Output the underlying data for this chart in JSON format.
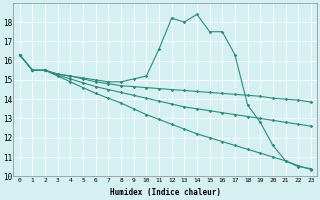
{
  "xlabel": "Humidex (Indice chaleur)",
  "background_color": "#d4f0f0",
  "grid_color": "#ffffff",
  "line_color": "#2e8b7a",
  "xlim": [
    -0.5,
    23.5
  ],
  "ylim": [
    10,
    19
  ],
  "yticks": [
    10,
    11,
    12,
    13,
    14,
    15,
    16,
    17,
    18
  ],
  "xticks": [
    0,
    1,
    2,
    3,
    4,
    5,
    6,
    7,
    8,
    9,
    10,
    11,
    12,
    13,
    14,
    15,
    16,
    17,
    18,
    19,
    20,
    21,
    22,
    23
  ],
  "lines": [
    {
      "x": [
        0,
        1,
        2,
        3,
        4,
        5,
        6,
        7,
        8,
        9,
        10,
        11,
        12,
        13,
        14,
        15,
        16,
        17,
        18,
        19,
        20,
        21,
        22,
        23
      ],
      "y": [
        16.3,
        15.5,
        15.5,
        15.3,
        15.2,
        15.1,
        15.0,
        14.9,
        14.9,
        15.05,
        15.2,
        16.6,
        18.2,
        18.0,
        18.4,
        17.5,
        17.5,
        16.3,
        13.7,
        12.8,
        11.6,
        10.8,
        10.5,
        10.4
      ]
    },
    {
      "x": [
        0,
        1,
        2,
        3,
        4,
        5,
        6,
        7,
        8,
        9,
        10,
        11,
        12,
        13,
        14,
        15,
        16,
        17,
        18,
        19,
        20,
        21,
        22,
        23
      ],
      "y": [
        16.3,
        15.5,
        15.5,
        15.3,
        15.2,
        15.05,
        14.9,
        14.8,
        14.7,
        14.65,
        14.6,
        14.55,
        14.5,
        14.45,
        14.4,
        14.35,
        14.3,
        14.25,
        14.2,
        14.15,
        14.05,
        14.0,
        13.95,
        13.85
      ]
    },
    {
      "x": [
        0,
        1,
        2,
        3,
        4,
        5,
        6,
        7,
        8,
        9,
        10,
        11,
        12,
        13,
        14,
        15,
        16,
        17,
        18,
        19,
        20,
        21,
        22,
        23
      ],
      "y": [
        16.3,
        15.5,
        15.5,
        15.25,
        15.05,
        14.85,
        14.65,
        14.5,
        14.35,
        14.2,
        14.05,
        13.9,
        13.75,
        13.6,
        13.5,
        13.4,
        13.3,
        13.2,
        13.1,
        13.0,
        12.9,
        12.8,
        12.7,
        12.6
      ]
    },
    {
      "x": [
        0,
        1,
        2,
        3,
        4,
        5,
        6,
        7,
        8,
        9,
        10,
        11,
        12,
        13,
        14,
        15,
        16,
        17,
        18,
        19,
        20,
        21,
        22,
        23
      ],
      "y": [
        16.3,
        15.5,
        15.5,
        15.2,
        14.9,
        14.6,
        14.3,
        14.05,
        13.8,
        13.5,
        13.2,
        12.95,
        12.7,
        12.45,
        12.2,
        12.0,
        11.8,
        11.6,
        11.4,
        11.2,
        11.0,
        10.8,
        10.55,
        10.35
      ]
    }
  ]
}
